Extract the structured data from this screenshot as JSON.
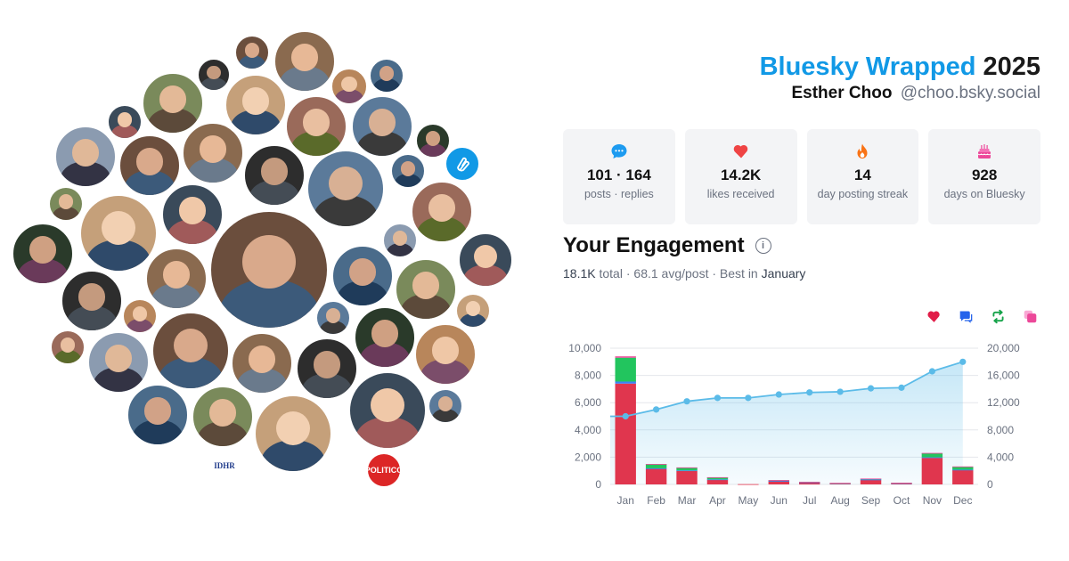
{
  "header": {
    "brand": "Bluesky Wrapped",
    "year": "2025",
    "name": "Esther Choo",
    "handle": "@choo.bsky.social",
    "brand_color": "#1199e6"
  },
  "stats": [
    {
      "icon": "chat-bubble-icon",
      "value": "101 · 164",
      "label": "posts · replies",
      "color": "#1d9bf0"
    },
    {
      "icon": "heart-icon",
      "value": "14.2K",
      "label": "likes received",
      "color": "#ef4444"
    },
    {
      "icon": "flame-icon",
      "value": "14",
      "label": "day posting streak",
      "color": "#f97316"
    },
    {
      "icon": "cake-icon",
      "value": "928",
      "label": "days on Bluesky",
      "color": "#ec4899"
    }
  ],
  "engagement": {
    "title": "Your Engagement",
    "total": "18.1K",
    "total_label": "total",
    "avg": "68.1 avg/post",
    "best_label": "Best in",
    "best_month": "January"
  },
  "legend": [
    {
      "icon": "heart-icon",
      "color": "#e11d48"
    },
    {
      "icon": "reply-icon",
      "color": "#2563eb"
    },
    {
      "icon": "repost-icon",
      "color": "#16a34a"
    },
    {
      "icon": "quote-icon",
      "color": "#ec4899"
    }
  ],
  "chart_data": {
    "type": "bar",
    "categories": [
      "Jan",
      "Feb",
      "Mar",
      "Apr",
      "May",
      "Jun",
      "Jul",
      "Aug",
      "Sep",
      "Oct",
      "Nov",
      "Dec"
    ],
    "series": [
      {
        "values": [
          7400,
          1150,
          1000,
          350,
          20,
          250,
          150,
          80,
          350,
          90,
          1950,
          1050
        ],
        "color": "#e0364e"
      },
      {
        "values": [
          150,
          30,
          30,
          20,
          0,
          10,
          5,
          5,
          10,
          5,
          40,
          30
        ],
        "color": "#3b82f6"
      },
      {
        "values": [
          1750,
          300,
          200,
          150,
          0,
          50,
          30,
          20,
          60,
          20,
          300,
          220
        ],
        "color": "#22c55e"
      },
      {
        "values": [
          100,
          20,
          20,
          10,
          0,
          5,
          5,
          5,
          10,
          5,
          20,
          20
        ],
        "color": "#ec4899"
      }
    ],
    "line": {
      "values": [
        10000,
        11000,
        12200,
        12700,
        12700,
        13200,
        13500,
        13600,
        14100,
        14200,
        16600,
        18000
      ],
      "color": "#5bbbe8"
    },
    "y_left": {
      "min": 0,
      "max": 10000,
      "ticks": [
        "0",
        "2,000",
        "4,000",
        "6,000",
        "8,000",
        "10,000"
      ]
    },
    "y_right": {
      "min": 0,
      "max": 20000,
      "ticks": [
        "0",
        "4,000",
        "8,000",
        "12,000",
        "16,000",
        "20,000"
      ]
    },
    "grid": true
  },
  "avatars": [
    {
      "name": "avatar-user-1"
    },
    {
      "name": "avatar-user-2"
    },
    {
      "name": "avatar-user-3"
    },
    {
      "name": "avatar-user-4"
    },
    {
      "name": "avatar-user-5"
    },
    {
      "name": "avatar-user-6"
    },
    {
      "name": "avatar-user-7"
    },
    {
      "name": "avatar-user-8"
    },
    {
      "name": "avatar-user-9"
    },
    {
      "name": "avatar-user-10"
    },
    {
      "name": "avatar-user-11"
    },
    {
      "name": "avatar-user-12"
    },
    {
      "name": "avatar-user-13"
    },
    {
      "name": "avatar-user-14"
    },
    {
      "name": "avatar-user-15"
    },
    {
      "name": "avatar-user-16"
    },
    {
      "name": "avatar-user-17"
    },
    {
      "name": "avatar-user-18"
    },
    {
      "name": "avatar-user-19"
    },
    {
      "name": "avatar-user-20"
    },
    {
      "name": "avatar-user-21"
    },
    {
      "name": "avatar-user-22"
    },
    {
      "name": "avatar-user-23"
    },
    {
      "name": "avatar-user-24"
    },
    {
      "name": "avatar-user-25"
    },
    {
      "name": "avatar-user-26"
    },
    {
      "name": "avatar-user-27"
    },
    {
      "name": "avatar-user-28"
    },
    {
      "name": "avatar-user-29"
    },
    {
      "name": "avatar-user-30"
    },
    {
      "name": "avatar-user-31"
    },
    {
      "name": "avatar-user-32"
    },
    {
      "name": "avatar-user-33"
    },
    {
      "name": "avatar-user-34"
    },
    {
      "name": "avatar-user-35"
    },
    {
      "name": "avatar-user-36"
    },
    {
      "name": "avatar-user-37"
    },
    {
      "name": "avatar-user-38"
    },
    {
      "name": "avatar-user-39"
    },
    {
      "name": "avatar-user-40"
    },
    {
      "name": "avatar-user-41"
    },
    {
      "name": "avatar-user-42"
    },
    {
      "name": "avatar-user-43"
    },
    {
      "name": "avatar-user-44"
    },
    {
      "name": "avatar-user-45"
    },
    {
      "name": "avatar-idhr-logo",
      "text": "IDHR"
    },
    {
      "name": "avatar-politico-logo",
      "text": "POLITICO"
    },
    {
      "name": "avatar-bluesky-logo"
    }
  ]
}
